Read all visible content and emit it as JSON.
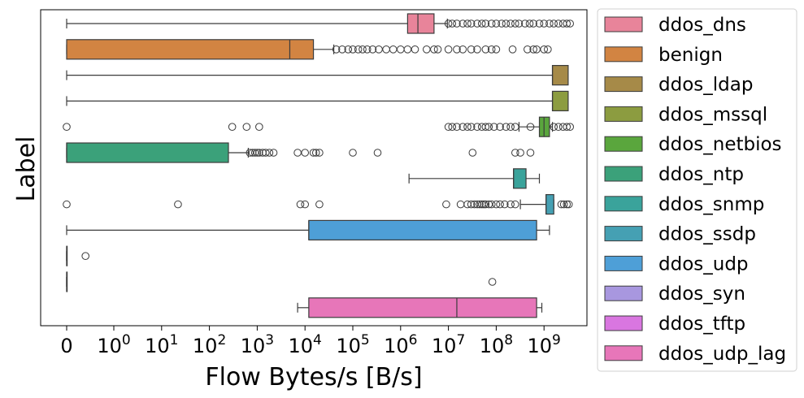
{
  "chart_data": {
    "type": "boxplot",
    "orientation": "horizontal",
    "x_scale": "symlog",
    "xlabel": "Flow Bytes/s [B/s]",
    "ylabel": "Label",
    "x_ticks": [
      {
        "value": 0,
        "label": "0"
      },
      {
        "value": 1,
        "base": "10",
        "exp": "0"
      },
      {
        "value": 10,
        "base": "10",
        "exp": "1"
      },
      {
        "value": 100,
        "base": "10",
        "exp": "2"
      },
      {
        "value": 1000,
        "base": "10",
        "exp": "3"
      },
      {
        "value": 10000,
        "base": "10",
        "exp": "4"
      },
      {
        "value": 100000,
        "base": "10",
        "exp": "5"
      },
      {
        "value": 1000000,
        "base": "10",
        "exp": "6"
      },
      {
        "value": 10000000,
        "base": "10",
        "exp": "7"
      },
      {
        "value": 100000000,
        "base": "10",
        "exp": "8"
      },
      {
        "value": 1000000000,
        "base": "10",
        "exp": "9"
      }
    ],
    "grid": false,
    "legend_position": "outside-right",
    "series": [
      {
        "name": "ddos_dns",
        "color": "#e8849a",
        "whislo": 0,
        "q1": 1400000,
        "med": 2300000,
        "q3": 5000000,
        "whishi": 9500000,
        "outliers": [
          10000000,
          12000000,
          15000000,
          20000000,
          25000000,
          30000000,
          40000000,
          50000000,
          60000000,
          80000000,
          100000000,
          130000000,
          160000000,
          200000000,
          250000000,
          300000000,
          400000000,
          500000000,
          600000000,
          800000000,
          1000000000,
          1300000000,
          1600000000,
          2000000000,
          2500000000,
          3000000000,
          3500000000
        ]
      },
      {
        "name": "benign",
        "color": "#d28442",
        "whislo": 0,
        "q1": 0,
        "med": 4800,
        "q3": 15000,
        "whishi": 40000,
        "outliers": [
          45000,
          60000,
          80000,
          100000,
          130000,
          160000,
          200000,
          260000,
          350000,
          500000,
          700000,
          1000000,
          1400000,
          2000000,
          3500000,
          5000000,
          6000000,
          10000000,
          15000000,
          20000000,
          30000000,
          40000000,
          60000000,
          80000000,
          100000000,
          220000000,
          450000000,
          600000000,
          700000000,
          1000000000,
          1200000000
        ]
      },
      {
        "name": "ddos_ldap",
        "color": "#a68a48",
        "whislo": 0,
        "q1": 1500000000,
        "med": 1500000000,
        "q3": 3200000000,
        "whishi": 3200000000,
        "outliers": []
      },
      {
        "name": "ddos_mssql",
        "color": "#8c9c40",
        "whislo": 0,
        "q1": 1500000000,
        "med": 1500000000,
        "q3": 3200000000,
        "whishi": 3200000000,
        "outliers": []
      },
      {
        "name": "ddos_netbios",
        "color": "#5aa63d",
        "whislo": 300000000,
        "q1": 800000000,
        "med": 1000000000,
        "q3": 1300000000,
        "whishi": 1500000000,
        "outliers": [
          0,
          300,
          600,
          1100,
          10000000,
          12000000,
          15000000,
          20000000,
          25000000,
          30000000,
          40000000,
          50000000,
          60000000,
          70000000,
          90000000,
          120000000,
          160000000,
          200000000,
          250000000,
          520000000,
          1600000000,
          2000000000,
          2500000000,
          3000000000,
          3500000000
        ]
      },
      {
        "name": "ddos_ntp",
        "color": "#3ba17a",
        "whislo": 0,
        "q1": 0,
        "med": 0,
        "q3": 250,
        "whishi": 650,
        "outliers": [
          700,
          800,
          900,
          1000,
          1100,
          1300,
          1500,
          1800,
          2200,
          7000,
          10000,
          15000,
          17000,
          20000,
          100000,
          330000,
          32000000,
          250000000,
          320000000,
          520000000
        ]
      },
      {
        "name": "ddos_snmp",
        "color": "#3aa39b",
        "whislo": 1500000,
        "q1": 230000000,
        "med": 230000000,
        "q3": 420000000,
        "whishi": 800000000,
        "outliers": []
      },
      {
        "name": "ddos_ssdp",
        "color": "#45a0b3",
        "whislo": 320000000,
        "q1": 1100000000,
        "med": 1100000000,
        "q3": 1600000000,
        "whishi": 1600000000,
        "outliers": [
          0,
          22,
          8000,
          10000,
          20000,
          9000000,
          18000000,
          25000000,
          30000000,
          35000000,
          40000000,
          45000000,
          50000000,
          55000000,
          60000000,
          70000000,
          80000000,
          100000000,
          120000000,
          150000000,
          200000000,
          250000000,
          2300000000,
          2600000000,
          3000000000,
          3300000000
        ]
      },
      {
        "name": "ddos_udp",
        "color": "#4e9fd7",
        "whislo": 0,
        "q1": 12000,
        "med": 12000,
        "q3": 700000000,
        "whishi": 1300000000,
        "outliers": []
      },
      {
        "name": "ddos_syn",
        "color": "#a897df",
        "whislo": 0,
        "q1": 0,
        "med": 0,
        "q3": 0,
        "whishi": 0,
        "outliers": [
          0.4
        ]
      },
      {
        "name": "ddos_tftp",
        "color": "#d976e0",
        "whislo": 0,
        "q1": 0,
        "med": 0,
        "q3": 0,
        "whishi": 0,
        "outliers": [
          83000000
        ]
      },
      {
        "name": "ddos_udp_lag",
        "color": "#e776b9",
        "whislo": 7000,
        "q1": 12000,
        "med": 15000000,
        "q3": 700000000,
        "whishi": 900000000,
        "outliers": []
      }
    ]
  }
}
